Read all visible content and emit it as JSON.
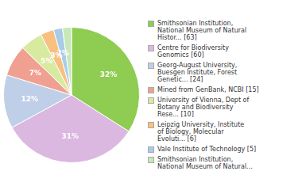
{
  "chart_data": {
    "type": "pie",
    "categories": [
      "Smithsonian Institution,\nNational Museum of Natural\nHistor... [63]",
      "Centre for Biodiversity\nGenomics [60]",
      "Georg-August University,\nBuesgen Institute, Forest\nGenetic... [24]",
      "Mined from GenBank, NCBI [15]",
      "University of Vienna, Dept of\nBotany and Biodiversity\nRese... [10]",
      "Leipzig University, Institute\nof Biology, Molecular\nEvoluti... [6]",
      "Vale Institute of Technology [5]",
      "Smithsonian Institution,\nNational Museum of Natural..."
    ],
    "values": [
      32,
      31,
      12,
      7,
      5,
      3,
      2,
      2
    ],
    "value_labels": [
      "32%",
      "31%",
      "12%",
      "7%",
      "5%",
      "3%",
      "2%",
      null
    ],
    "colors": [
      "#8fcc52",
      "#dbb8e0",
      "#c0cfe8",
      "#f0a090",
      "#d8eaa0",
      "#f8c080",
      "#a8cce8",
      "#c8e8b8"
    ],
    "data_labels": true,
    "legend": "right"
  }
}
